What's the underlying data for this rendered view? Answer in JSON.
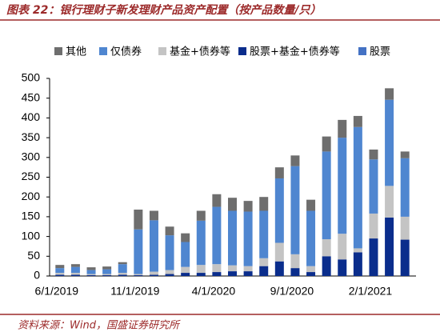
{
  "chart_data": {
    "type": "stacked_bar",
    "title": "图表 22：银行理财子新发理财产品资产配置（按产品数量/只）",
    "source": "资料来源：Wind，国盛证券研究所",
    "categories": [
      "6/1/2019",
      null,
      null,
      null,
      null,
      "11/1/2019",
      null,
      null,
      null,
      null,
      "4/1/2020",
      null,
      null,
      null,
      null,
      "9/1/2020",
      null,
      null,
      null,
      null,
      "2/1/2021",
      null,
      null
    ],
    "series": [
      {
        "name": "其他",
        "color": "#6e6e6e",
        "values": [
          8,
          7,
          7,
          7,
          5,
          50,
          24,
          22,
          22,
          25,
          32,
          33,
          27,
          35,
          28,
          27,
          28,
          38,
          45,
          28,
          25,
          29,
          17
        ]
      },
      {
        "name": "仅债券",
        "color": "#4f86d0",
        "values": [
          12,
          15,
          10,
          12,
          22,
          113,
          130,
          88,
          63,
          112,
          145,
          138,
          138,
          120,
          163,
          223,
          140,
          222,
          243,
          307,
          137,
          218,
          148
        ]
      },
      {
        "name": "基金+债券等",
        "color": "#c4c4c4",
        "values": [
          5,
          5,
          3,
          3,
          5,
          3,
          8,
          10,
          15,
          20,
          20,
          15,
          13,
          20,
          47,
          35,
          15,
          43,
          65,
          10,
          63,
          80,
          58
        ]
      },
      {
        "name": "股票+基金+债券等",
        "color": "#0a2d8c",
        "values": [
          3,
          3,
          2,
          2,
          3,
          2,
          3,
          5,
          8,
          8,
          10,
          12,
          12,
          25,
          37,
          20,
          10,
          50,
          42,
          60,
          95,
          148,
          92
        ]
      },
      {
        "name": "股票",
        "color": "#4472c4",
        "values": [
          0,
          0,
          0,
          0,
          0,
          0,
          0,
          0,
          0,
          0,
          0,
          0,
          0,
          0,
          0,
          0,
          0,
          0,
          0,
          0,
          0,
          0,
          0
        ]
      }
    ],
    "ylim": [
      0,
      500
    ],
    "yticks": [
      0,
      50,
      100,
      150,
      200,
      250,
      300,
      350,
      400,
      450,
      500
    ]
  }
}
